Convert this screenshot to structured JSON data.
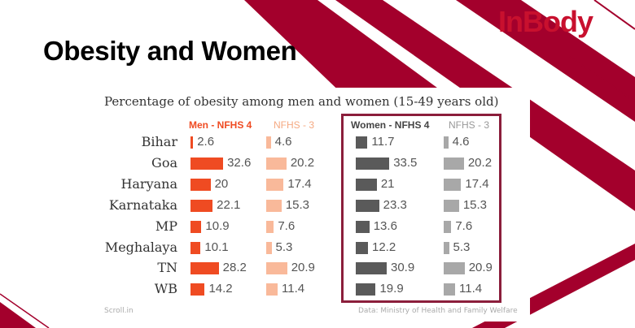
{
  "slide": {
    "title": "Obesity and Women",
    "logo": "InBody"
  },
  "colors": {
    "accent": "#a3002c",
    "men_nfhs4": "#ef4b22",
    "men_nfhs3": "#f9b99a",
    "women_nfhs4": "#5a5a5a",
    "women_nfhs3": "#a8a8a8",
    "highlight_box": "#8b1e3b"
  },
  "chart_data": {
    "type": "bar",
    "title": "Percentage of obesity among men and women (15-49 years old)",
    "categories": [
      "Bihar",
      "Goa",
      "Haryana",
      "Karnataka",
      "MP",
      "Meghalaya",
      "TN",
      "WB"
    ],
    "series": [
      {
        "name": "Men - NFHS 4",
        "values": [
          2.6,
          32.6,
          20,
          22.1,
          10.9,
          10.1,
          28.2,
          14.2
        ]
      },
      {
        "name": "NFHS - 3",
        "values": [
          4.6,
          20.2,
          17.4,
          15.3,
          7.6,
          5.3,
          20.9,
          11.4
        ]
      },
      {
        "name": "Women - NFHS 4",
        "values": [
          11.7,
          33.5,
          21,
          23.3,
          13.6,
          12.2,
          30.9,
          19.9
        ]
      },
      {
        "name": "NFHS - 3",
        "values": [
          4.6,
          20.2,
          17.4,
          15.3,
          7.6,
          5.3,
          20.9,
          11.4
        ]
      }
    ],
    "orientation": "horizontal",
    "grid": false
  },
  "footer": {
    "source_left": "Scroll.in",
    "source_right": "Data: Ministry of Health and Family Welfare"
  }
}
